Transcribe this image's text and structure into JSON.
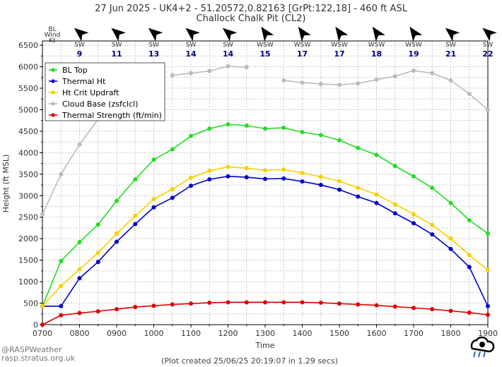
{
  "chart_data": {
    "type": "line",
    "title": "27 Jun 2025 - UK4+2 - 51.20572,0.82163 [GrPt:122,18]  - 460 ft ASL",
    "subtitle": "Challock Chalk Pit (CL2)",
    "xlabel": "Time",
    "ylabel": "Height (ft MSL)",
    "xlim": [
      700,
      1900
    ],
    "ylim": [
      0,
      6600
    ],
    "x_ticks": [
      "0700",
      "0800",
      "0900",
      "1000",
      "1100",
      "1200",
      "1300",
      "1400",
      "1500",
      "1600",
      "1700",
      "1800",
      "1900"
    ],
    "y_ticks": [
      0,
      500,
      1000,
      1500,
      2000,
      2500,
      3000,
      3500,
      4000,
      4500,
      5000,
      5500,
      6000,
      6500
    ],
    "grid": true,
    "legend_position": "top-left",
    "x": [
      700,
      750,
      800,
      850,
      900,
      950,
      1000,
      1050,
      1100,
      1150,
      1200,
      1250,
      1300,
      1350,
      1400,
      1450,
      1500,
      1550,
      1600,
      1650,
      1700,
      1750,
      1800,
      1850,
      1900
    ],
    "series": [
      {
        "name": "BL Top",
        "color": "#22dd22",
        "values": [
          430,
          1480,
          1920,
          2330,
          2880,
          3380,
          3840,
          4080,
          4390,
          4560,
          4660,
          4630,
          4560,
          4580,
          4480,
          4410,
          4290,
          4110,
          3950,
          3690,
          3450,
          3180,
          2830,
          2430,
          2120
        ]
      },
      {
        "name": "Thermal Ht",
        "color": "#0000cc",
        "values": [
          430,
          430,
          1080,
          1460,
          1930,
          2340,
          2730,
          2950,
          3230,
          3380,
          3450,
          3430,
          3390,
          3400,
          3330,
          3250,
          3140,
          2980,
          2830,
          2590,
          2360,
          2100,
          1760,
          1340,
          430
        ]
      },
      {
        "name": "Ht Crit Updraft",
        "color": "#f5d000",
        "values": [
          430,
          900,
          1290,
          1670,
          2120,
          2530,
          2920,
          3150,
          3420,
          3580,
          3670,
          3640,
          3590,
          3610,
          3530,
          3440,
          3340,
          3180,
          3030,
          2800,
          2570,
          2320,
          2000,
          1620,
          1270
        ]
      },
      {
        "name": "Cloud Base (zsfclcl)",
        "color": "#bbbbbb",
        "values": [
          2570,
          3500,
          4190,
          4780,
          null,
          null,
          null,
          5800,
          5850,
          5900,
          6010,
          5990,
          null,
          5680,
          5630,
          5600,
          5580,
          5610,
          5700,
          5780,
          5910,
          5850,
          5680,
          5370,
          5000
        ]
      },
      {
        "name": "Thermal Strength (ft/min)",
        "color": "#dd0000",
        "values": [
          0,
          220,
          270,
          310,
          360,
          410,
          440,
          470,
          490,
          510,
          520,
          520,
          520,
          520,
          520,
          510,
          490,
          470,
          450,
          420,
          390,
          360,
          320,
          280,
          230
        ]
      }
    ],
    "wind": {
      "label_lines": [
        "BL",
        "Wind",
        "Kt"
      ],
      "x": [
        800,
        900,
        1000,
        1100,
        1200,
        1300,
        1400,
        1500,
        1600,
        1700,
        1800,
        1900
      ],
      "directions": [
        "SW",
        "SW",
        "SW",
        "SW",
        "SW",
        "WSW",
        "WSW",
        "WSW",
        "WSW",
        "WSW",
        "SW",
        "SW"
      ],
      "speeds": [
        "9",
        "11",
        "13",
        "14",
        "14",
        "15",
        "17",
        "17",
        "18",
        "19",
        "21",
        "22"
      ]
    }
  },
  "footer": {
    "brand_line1": "@RASPWeather",
    "brand_line2": "rasp.stratus.org.uk",
    "created": "(Plot created 25/06/25 20:19:07 in 1.29 secs)"
  },
  "colors": {
    "grid": "#c8c8c8",
    "axis": "#000000",
    "wind_speed": "#000080"
  }
}
